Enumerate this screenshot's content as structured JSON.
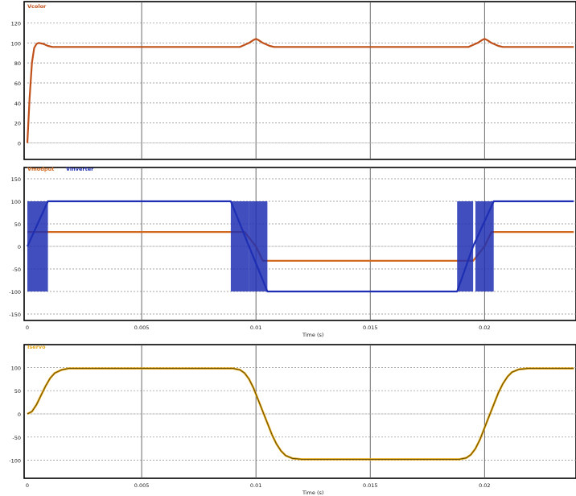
{
  "chart_data": [
    {
      "type": "line",
      "title": "",
      "xlabel": "",
      "ylabel": "",
      "xlim": [
        0,
        0.024
      ],
      "ylim": [
        -10,
        130
      ],
      "yticks": [
        0,
        20,
        40,
        60,
        80,
        100,
        120
      ],
      "ytick_labels": [
        "0",
        "20",
        "40",
        "60",
        "80",
        "100",
        "120"
      ],
      "grid": true,
      "legend": "top-left",
      "series": [
        {
          "name": "Vcolor",
          "color": "#c0501a",
          "points": [
            [
              0,
              0
            ],
            [
              0.0001,
              45
            ],
            [
              0.0002,
              80
            ],
            [
              0.0003,
              95
            ],
            [
              0.0004,
              99
            ],
            [
              0.0005,
              100
            ],
            [
              0.0007,
              99
            ],
            [
              0.0009,
              97
            ],
            [
              0.0011,
              96
            ],
            [
              0.0093,
              96
            ],
            [
              0.0095,
              98
            ],
            [
              0.0097,
              100
            ],
            [
              0.0099,
              103
            ],
            [
              0.01,
              104
            ],
            [
              0.0101,
              103
            ],
            [
              0.0103,
              100
            ],
            [
              0.0106,
              97
            ],
            [
              0.0108,
              96
            ],
            [
              0.0193,
              96
            ],
            [
              0.0195,
              98
            ],
            [
              0.0197,
              100
            ],
            [
              0.0199,
              103
            ],
            [
              0.02,
              104
            ],
            [
              0.0201,
              103
            ],
            [
              0.0203,
              100
            ],
            [
              0.0206,
              97
            ],
            [
              0.0208,
              96
            ],
            [
              0.0239,
              96
            ]
          ]
        }
      ]
    },
    {
      "type": "line",
      "title": "",
      "xlabel": "Time (s)",
      "ylabel": "",
      "xlim": [
        0,
        0.024
      ],
      "ylim": [
        -150,
        150
      ],
      "yticks": [
        -150,
        -100,
        -50,
        0,
        50,
        100,
        150
      ],
      "ytick_labels": [
        "-150",
        "-100",
        "-50",
        "0",
        "50",
        "100",
        "150"
      ],
      "xticks": [
        0,
        0.005,
        0.01,
        0.015,
        0.02
      ],
      "xtick_labels": [
        "0",
        "0.005",
        "0.01",
        "0.015",
        "0.02"
      ],
      "grid": true,
      "legend": "top-left",
      "series": [
        {
          "name": "Vmodput",
          "color": "#d2691e",
          "points": [
            [
              0,
              32
            ],
            [
              0.0095,
              32
            ],
            [
              0.01,
              0
            ],
            [
              0.0103,
              -32
            ],
            [
              0.0195,
              -32
            ],
            [
              0.02,
              0
            ],
            [
              0.0203,
              32
            ],
            [
              0.0239,
              32
            ]
          ]
        },
        {
          "name": "Vinverter",
          "color": "#1f2fb3",
          "note_switching": [
            [
              0,
              0.0009
            ],
            [
              0.0089,
              0.0097
            ],
            [
              0.0097,
              0.0105
            ],
            [
              0.0188,
              0.0195
            ],
            [
              0.0196,
              0.0204
            ]
          ],
          "points": [
            [
              0,
              0
            ],
            [
              0.0009,
              100
            ],
            [
              0.0089,
              100
            ],
            [
              0.0097,
              0
            ],
            [
              0.0105,
              -100
            ],
            [
              0.0188,
              -100
            ],
            [
              0.0195,
              0
            ],
            [
              0.0204,
              100
            ],
            [
              0.0239,
              100
            ]
          ]
        }
      ]
    },
    {
      "type": "line",
      "title": "",
      "xlabel": "Time (s)",
      "ylabel": "",
      "xlim": [
        0,
        0.024
      ],
      "ylim": [
        -125,
        125
      ],
      "yticks": [
        -100,
        -50,
        0,
        50,
        100
      ],
      "ytick_labels": [
        "-100",
        "-50",
        "0",
        "50",
        "100"
      ],
      "xticks": [
        0,
        0.005,
        0.01,
        0.015,
        0.02
      ],
      "xtick_labels": [
        "0",
        "0.005",
        "0.01",
        "0.015",
        "0.02"
      ],
      "grid": true,
      "legend": "top-left",
      "series": [
        {
          "name": "Iservo",
          "color": "#e6a817",
          "points": [
            [
              0,
              0
            ],
            [
              0.0002,
              5
            ],
            [
              0.0004,
              20
            ],
            [
              0.0006,
              40
            ],
            [
              0.0008,
              60
            ],
            [
              0.001,
              77
            ],
            [
              0.0012,
              88
            ],
            [
              0.0015,
              95
            ],
            [
              0.0018,
              98
            ],
            [
              0.0025,
              98
            ],
            [
              0.009,
              98
            ],
            [
              0.0093,
              95
            ],
            [
              0.0095,
              88
            ],
            [
              0.0097,
              75
            ],
            [
              0.0099,
              55
            ],
            [
              0.0101,
              30
            ],
            [
              0.0103,
              5
            ],
            [
              0.0105,
              -20
            ],
            [
              0.0107,
              -45
            ],
            [
              0.0109,
              -65
            ],
            [
              0.0111,
              -80
            ],
            [
              0.0113,
              -90
            ],
            [
              0.0116,
              -96
            ],
            [
              0.012,
              -98
            ],
            [
              0.0125,
              -98
            ],
            [
              0.0189,
              -98
            ],
            [
              0.0192,
              -95
            ],
            [
              0.0194,
              -88
            ],
            [
              0.0196,
              -75
            ],
            [
              0.0198,
              -55
            ],
            [
              0.02,
              -30
            ],
            [
              0.0202,
              -5
            ],
            [
              0.0204,
              20
            ],
            [
              0.0206,
              45
            ],
            [
              0.0208,
              65
            ],
            [
              0.021,
              80
            ],
            [
              0.0212,
              90
            ],
            [
              0.0215,
              96
            ],
            [
              0.0219,
              98
            ],
            [
              0.0239,
              98
            ]
          ]
        }
      ]
    }
  ]
}
